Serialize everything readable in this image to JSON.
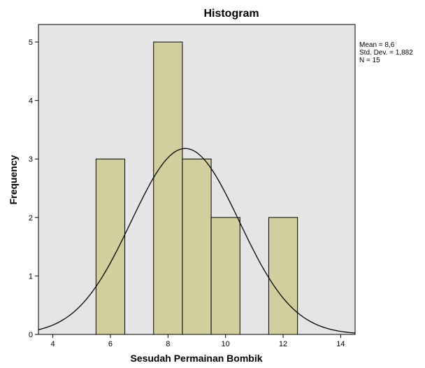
{
  "chart_data": {
    "type": "bar",
    "title": "Histogram",
    "xlabel": "Sesudah Permainan Bombik",
    "ylabel": "Frequency",
    "xlim": [
      3.5,
      14.5
    ],
    "ylim": [
      0,
      5.3
    ],
    "x_ticks": [
      "4",
      "6",
      "8",
      "10",
      "12",
      "14"
    ],
    "x_tick_values": [
      4,
      6,
      8,
      10,
      12,
      14
    ],
    "y_ticks": [
      "0",
      "1",
      "2",
      "3",
      "4",
      "5"
    ],
    "y_tick_values": [
      0,
      1,
      2,
      3,
      4,
      5
    ],
    "bins": [
      {
        "start": 5.5,
        "end": 6.5,
        "value": 3
      },
      {
        "start": 7.5,
        "end": 8.5,
        "value": 5
      },
      {
        "start": 8.5,
        "end": 9.5,
        "value": 3
      },
      {
        "start": 9.5,
        "end": 10.5,
        "value": 2
      },
      {
        "start": 11.5,
        "end": 12.5,
        "value": 2
      }
    ],
    "normal_curve": {
      "mean": 8.6,
      "std_dev": 1.882,
      "n": 15,
      "bin_width": 1
    },
    "stats_lines": [
      "Mean = 8,6",
      "Std. Dev. = 1,882",
      "N = 15"
    ],
    "grid": false,
    "colors": {
      "plot_background": "#e5e5e5",
      "bar_fill": "#d3ce9e",
      "bar_stroke": "#000000",
      "curve": "#000000",
      "axis": "#000000"
    }
  }
}
